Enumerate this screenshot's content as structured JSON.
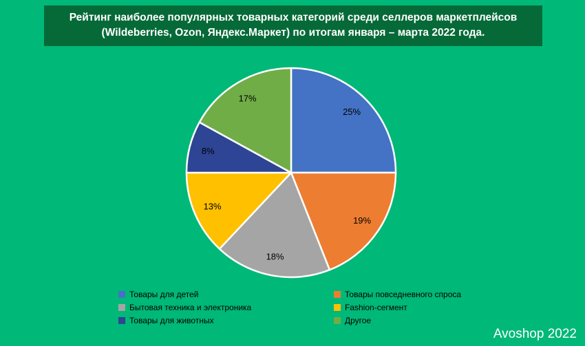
{
  "title": {
    "line1": "Рейтинг наиболее популярных товарных категорий среди селлеров маркетплейсов",
    "line2": "(Wildeberries, Ozon, Яндекс.Маркет) по итогам января – марта 2022 года."
  },
  "watermark": "Avoshop 2022",
  "colors": {
    "background": "#00B878",
    "title_box": "#066A38",
    "slice_border": "#FFFFFF",
    "label_text": "#000000"
  },
  "chart_data": {
    "type": "pie",
    "title": "Рейтинг наиболее популярных товарных категорий среди селлеров маркетплейсов (Wildeberries, Ozon, Яндекс.Маркет) по итогам января – марта 2022 года.",
    "start_angle_deg": 0,
    "direction": "clockwise",
    "legend_position": "bottom",
    "legend_columns": 2,
    "slices": [
      {
        "label": "Товары для детей",
        "value": 25,
        "pct_label": "25%",
        "color": "#4472C4"
      },
      {
        "label": "Товары повседневного спроса",
        "value": 19,
        "pct_label": "19%",
        "color": "#ED7D31"
      },
      {
        "label": "Бытовая техника и электроника",
        "value": 18,
        "pct_label": "18%",
        "color": "#A5A5A5"
      },
      {
        "label": "Fashion-сегмент",
        "value": 13,
        "pct_label": "13%",
        "color": "#FFC000"
      },
      {
        "label": "Товары для животных",
        "value": 8,
        "pct_label": "8%",
        "color": "#2E4494"
      },
      {
        "label": "Другое",
        "value": 17,
        "pct_label": "17%",
        "color": "#70AD47"
      }
    ]
  }
}
